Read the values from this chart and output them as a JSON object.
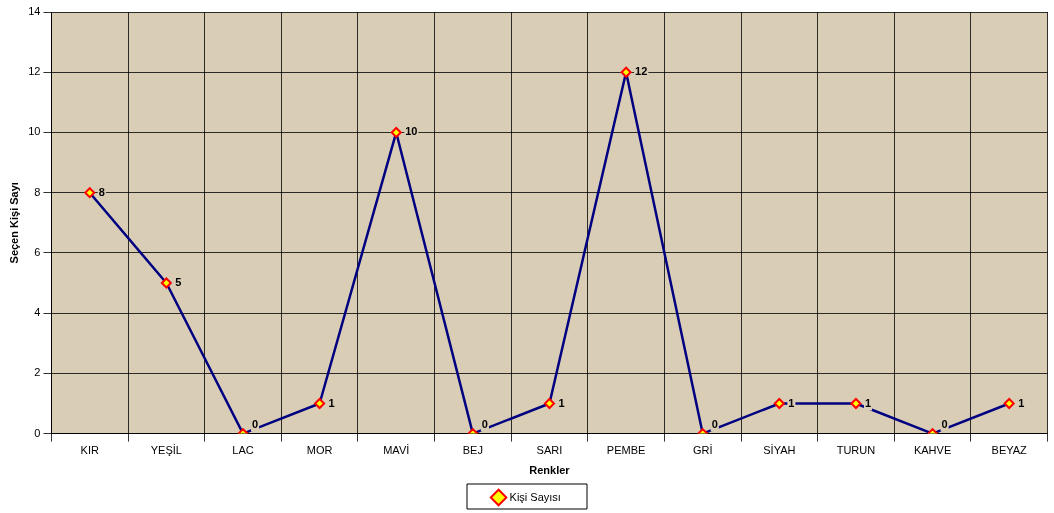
{
  "chart_data": {
    "type": "line",
    "xlabel": "Renkler",
    "ylabel": "Seçen Kişi Sayı",
    "categories": [
      "KIR",
      "YEŞİL",
      "LAC",
      "MOR",
      "MAVİ",
      "BEJ",
      "SARI",
      "PEMBE",
      "GRİ",
      "SİYAH",
      "TURUN",
      "KAHVE",
      "BEYAZ"
    ],
    "series": [
      {
        "name": "Kişi Sayısı",
        "color": "#000080",
        "values": [
          8,
          5,
          0,
          1,
          10,
          0,
          1,
          12,
          0,
          1,
          1,
          0,
          1
        ]
      }
    ],
    "ylim": [
      0,
      14
    ],
    "yticks": [
      0,
      2,
      4,
      6,
      8,
      10,
      12,
      14
    ],
    "grid": true,
    "legend": "bottom",
    "marker": "diamond",
    "line_style": "solid",
    "data_labels": true
  }
}
